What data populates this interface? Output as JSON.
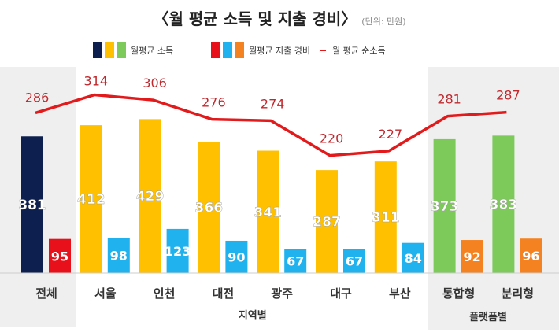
{
  "title": "〈월 평균 소득 및 지출 경비〉",
  "unit": "(단위: 만원)",
  "chart_data": {
    "type": "bar",
    "title": "〈월 평균 소득 및 지출 경비〉",
    "categories": [
      "전체",
      "서울",
      "인천",
      "대전",
      "광주",
      "대구",
      "부산",
      "통합형",
      "분리형"
    ],
    "group_labels": [
      {
        "label": "지역별",
        "categories": [
          "서울",
          "인천",
          "대전",
          "광주",
          "대구",
          "부산"
        ]
      },
      {
        "label": "플랫폼별",
        "categories": [
          "통합형",
          "분리형"
        ]
      }
    ],
    "series": [
      {
        "name": "월평균 소득",
        "type": "bar",
        "values": [
          381,
          412,
          429,
          366,
          341,
          287,
          311,
          373,
          383
        ],
        "colors": [
          "#0d1f4f",
          "#ffc000",
          "#ffc000",
          "#ffc000",
          "#ffc000",
          "#ffc000",
          "#ffc000",
          "#7dc95a",
          "#7dc95a"
        ]
      },
      {
        "name": "월평균 지출 경비",
        "type": "bar",
        "values": [
          95,
          98,
          123,
          90,
          67,
          67,
          84,
          92,
          96
        ],
        "colors": [
          "#e8101a",
          "#1fb2ee",
          "#1fb2ee",
          "#1fb2ee",
          "#1fb2ee",
          "#1fb2ee",
          "#1fb2ee",
          "#f58220",
          "#f58220"
        ]
      },
      {
        "name": "월 평균 순소득",
        "type": "line",
        "values": [
          286,
          314,
          306,
          276,
          274,
          220,
          227,
          281,
          287
        ],
        "color": "#e31a1c"
      }
    ],
    "legend": {
      "placement": "top",
      "items": [
        {
          "label": "월평균 소득",
          "colors": [
            "#0d1f4f",
            "#ffc000",
            "#7dc95a"
          ]
        },
        {
          "label": "월평균 지출 경비",
          "colors": [
            "#e8101a",
            "#1fb2ee",
            "#f58220"
          ]
        },
        {
          "label": "월 평균 순소득",
          "colors": [
            "#e31a1c"
          ]
        }
      ]
    },
    "grid": false
  }
}
